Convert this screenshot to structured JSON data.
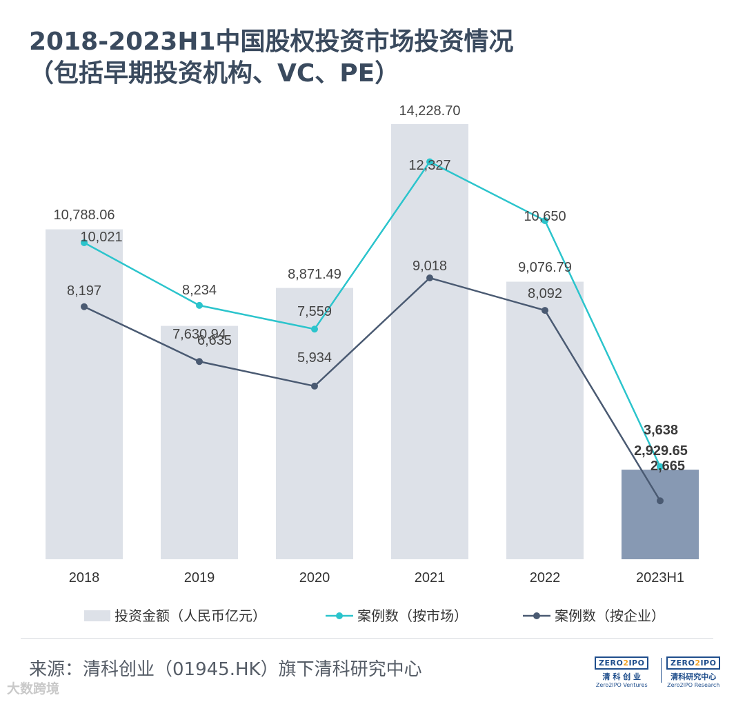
{
  "title_line1": "2018-2023H1中国股权投资市场投资情况",
  "title_line2": "（包括早期投资机构、VC、PE）",
  "source": "来源：清科创业（01945.HK）旗下清科研究中心",
  "watermark": "大数跨境",
  "logos": [
    {
      "mark": "ZERO2IPO",
      "cn": "清 科 创 业",
      "en": "Zero2IPO Ventures"
    },
    {
      "mark": "ZERO2IPO",
      "cn": "清科研究中心",
      "en": "Zero2IPO Research"
    }
  ],
  "colors": {
    "bar": "#dde1e8",
    "bar_highlight": "#8799b3",
    "line_market": "#2bc4cc",
    "line_company": "#4a5a72"
  },
  "chart_data": {
    "type": "bar+line",
    "categories": [
      "2018",
      "2019",
      "2020",
      "2021",
      "2022",
      "2023H1"
    ],
    "series": [
      {
        "name": "投资金额（人民币亿元）",
        "kind": "bar",
        "values": [
          10788.06,
          7630.94,
          8871.49,
          14228.7,
          9076.79,
          2929.65
        ],
        "labels": [
          "10,788.06",
          "7,630.94",
          "8,871.49",
          "14,228.70",
          "9,076.79",
          "2,929.65"
        ]
      },
      {
        "name": "案例数（按市场）",
        "kind": "line",
        "values": [
          10021,
          8234,
          7559,
          12327,
          10650,
          3638
        ],
        "labels": [
          "10,021",
          "8,234",
          "7,559",
          "12,327",
          "10,650",
          "3,638"
        ]
      },
      {
        "name": "案例数（按企业）",
        "kind": "line",
        "values": [
          8197,
          6635,
          5934,
          9018,
          8092,
          2665
        ],
        "labels": [
          "8,197",
          "6,635",
          "5,934",
          "9,018",
          "8,092",
          "2,665"
        ]
      }
    ],
    "bar_axis_max": 14228.7,
    "line_axis_range": [
      1000,
      13400
    ]
  }
}
